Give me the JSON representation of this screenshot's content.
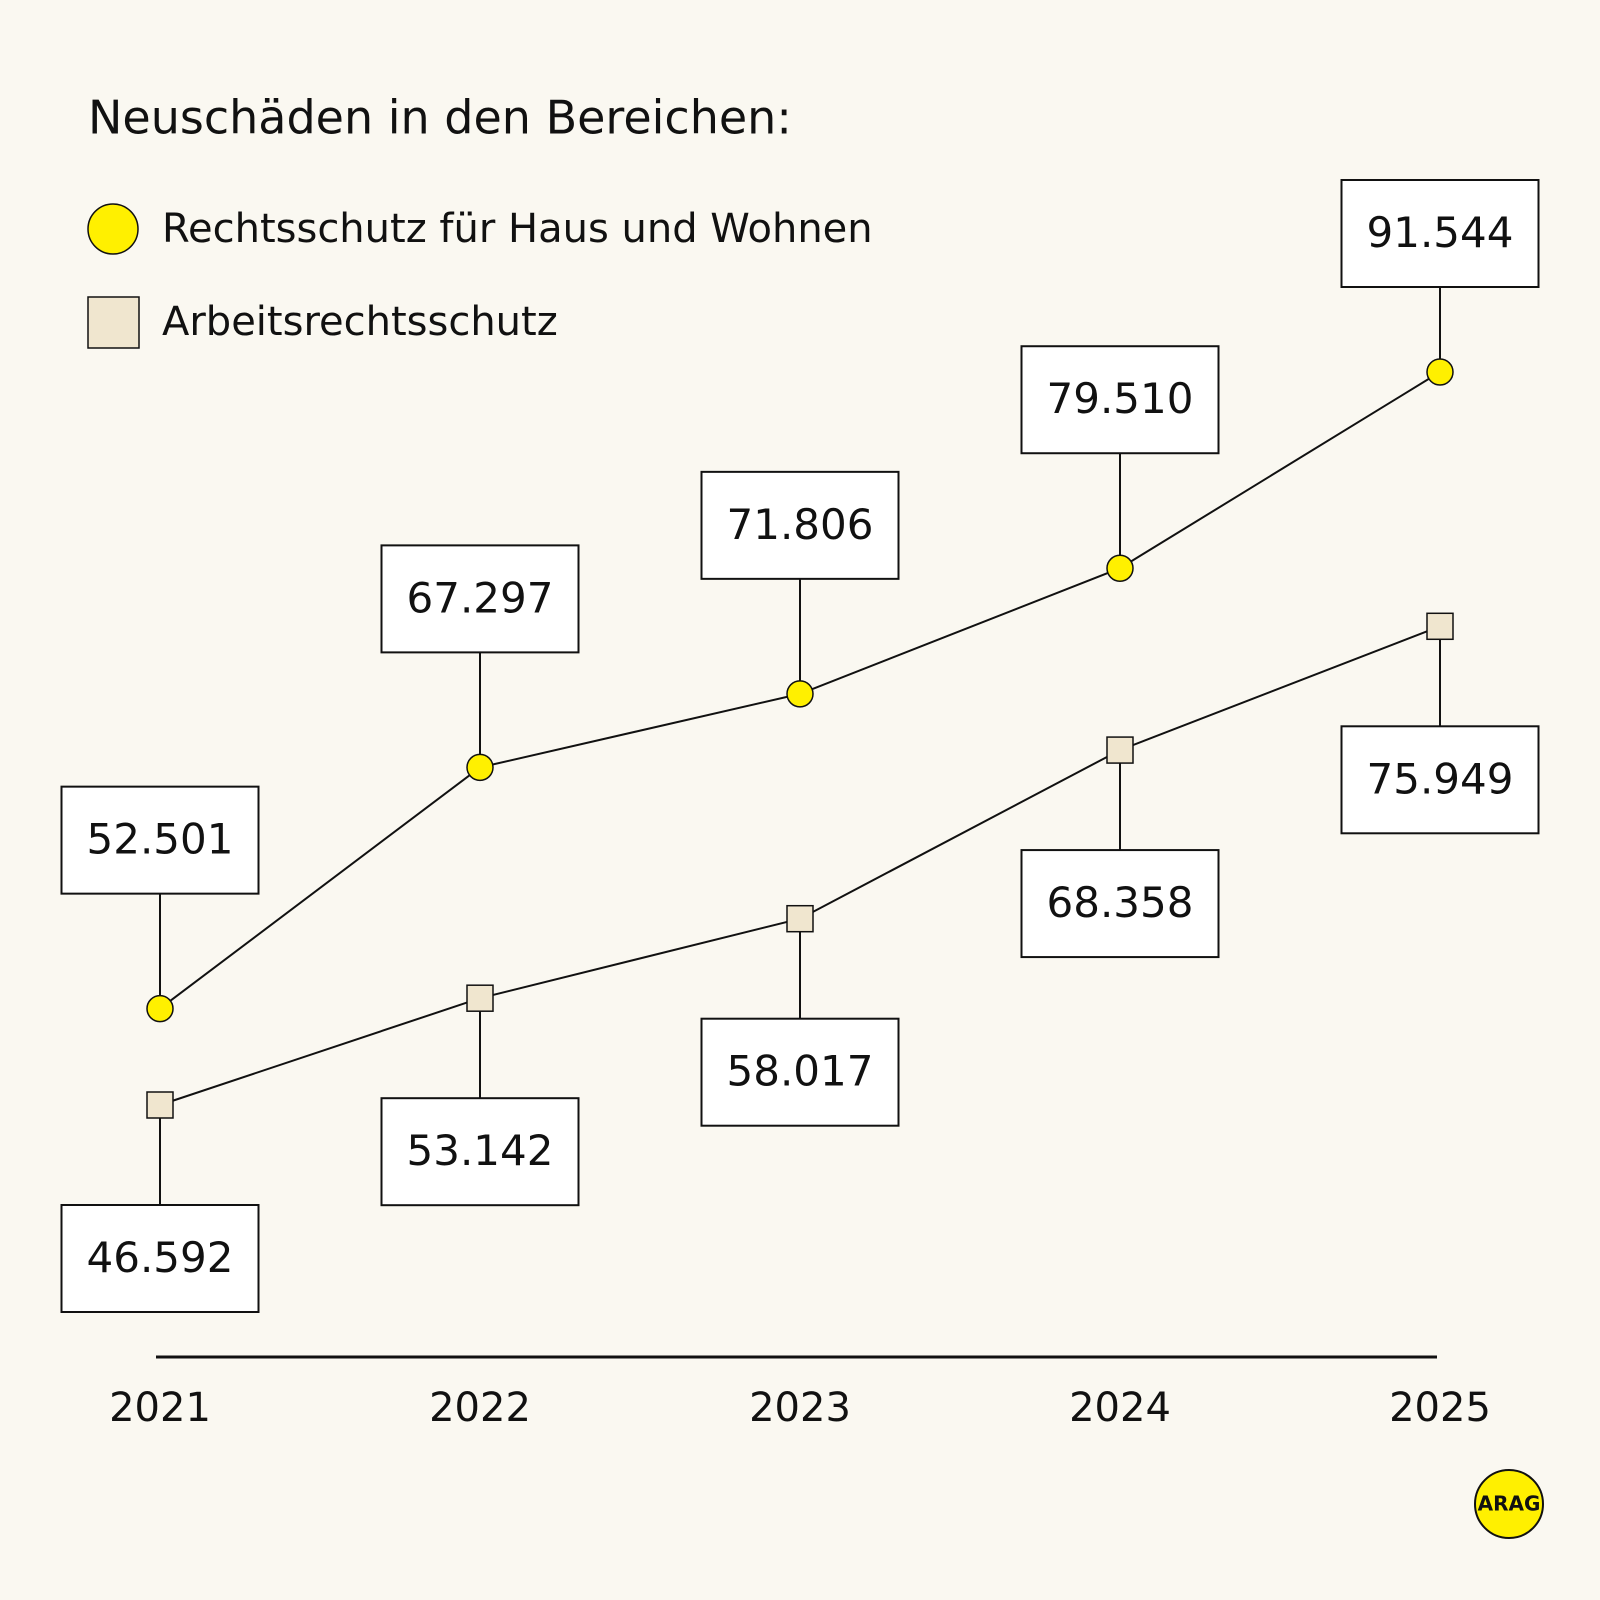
{
  "chart_data": {
    "type": "line",
    "title": "Neuschäden in den Bereichen:",
    "categories": [
      "2021",
      "2022",
      "2023",
      "2024",
      "2025"
    ],
    "series": [
      {
        "name": "Rechtsschutz für Haus und Wohnen",
        "color": "#fff000",
        "marker": "circle",
        "values": [
          52501,
          67297,
          71806,
          79510,
          91544
        ],
        "value_labels": [
          "52.501",
          "67.297",
          "71.806",
          "79.510",
          "91.544"
        ]
      },
      {
        "name": "Arbeitsrechtsschutz",
        "color": "#f0e6cf",
        "marker": "square",
        "values": [
          46592,
          53142,
          58017,
          68358,
          75949
        ],
        "value_labels": [
          "46.592",
          "53.142",
          "58.017",
          "68.358",
          "75.949"
        ]
      }
    ]
  },
  "logo": "ARAG"
}
